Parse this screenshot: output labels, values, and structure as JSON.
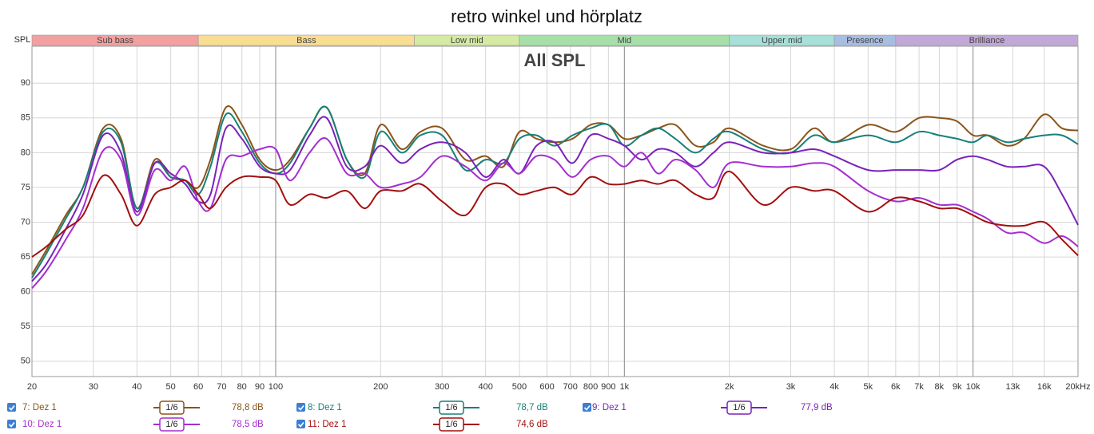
{
  "chart_data": {
    "type": "line",
    "title": "retro winkel und hörplatz",
    "subtitle": "All SPL",
    "y_label": "SPL",
    "xscale": "log",
    "xlim": [
      20,
      20000
    ],
    "ylim": [
      47.8,
      95.3
    ],
    "grid": true,
    "xticks": [
      20,
      30,
      40,
      50,
      60,
      70,
      80,
      90,
      100,
      200,
      300,
      400,
      500,
      600,
      700,
      800,
      900,
      {
        "value": 1000,
        "label": "1k"
      },
      {
        "value": 2000,
        "label": "2k"
      },
      {
        "value": 3000,
        "label": "3k"
      },
      {
        "value": 4000,
        "label": "4k"
      },
      {
        "value": 5000,
        "label": "5k"
      },
      {
        "value": 6000,
        "label": "6k"
      },
      {
        "value": 7000,
        "label": "7k"
      },
      {
        "value": 8000,
        "label": "8k"
      },
      {
        "value": 9000,
        "label": "9k"
      },
      {
        "value": 10000,
        "label": "10k"
      },
      {
        "value": 13000,
        "label": "13k"
      },
      {
        "value": 16000,
        "label": "16k"
      },
      {
        "value": 20000,
        "label": "20kHz"
      }
    ],
    "yticks": [
      50,
      55,
      60,
      65,
      70,
      75,
      80,
      85,
      90
    ],
    "bands": [
      {
        "name": "Sub bass",
        "start": 20,
        "end": 60,
        "color": "#f2a0a0"
      },
      {
        "name": "Bass",
        "start": 60,
        "end": 250,
        "color": "#f9dd92"
      },
      {
        "name": "Low mid",
        "start": 250,
        "end": 500,
        "color": "#d5eaa2"
      },
      {
        "name": "Mid",
        "start": 500,
        "end": 2000,
        "color": "#a6e0a8"
      },
      {
        "name": "Upper mid",
        "start": 2000,
        "end": 4000,
        "color": "#a6e0d8"
      },
      {
        "name": "Presence",
        "start": 4000,
        "end": 6000,
        "color": "#a8bde2"
      },
      {
        "name": "Brilliance",
        "start": 6000,
        "end": 20000,
        "color": "#c2a8d8"
      }
    ],
    "x": [
      20,
      22,
      25,
      28,
      32,
      36,
      40,
      45,
      50,
      55,
      60,
      65,
      72,
      80,
      90,
      100,
      110,
      125,
      140,
      160,
      180,
      200,
      230,
      260,
      300,
      350,
      400,
      450,
      500,
      560,
      630,
      710,
      800,
      900,
      1000,
      1120,
      1250,
      1400,
      1600,
      1800,
      2000,
      2500,
      3000,
      3500,
      4000,
      5000,
      6000,
      7000,
      8000,
      9000,
      10000,
      11000,
      12500,
      14000,
      16000,
      18000,
      20000
    ],
    "series": [
      {
        "name": "7: Dez 1",
        "color": "#8b5418",
        "smoothing": "1/6",
        "level": {
          "value": 78.8,
          "label": "78,8 dB"
        },
        "values": [
          62.5,
          66,
          71,
          75,
          83.5,
          82,
          72,
          79,
          76.5,
          76,
          75,
          79,
          86.5,
          84,
          79,
          77.5,
          79,
          83.5,
          86.5,
          79,
          77,
          84,
          80.5,
          83,
          83.5,
          79,
          79.5,
          78,
          83,
          82,
          81.5,
          82,
          84,
          84,
          82,
          82.5,
          83.5,
          84,
          81,
          81.5,
          83.5,
          81,
          80.5,
          83.5,
          81.5,
          84,
          83,
          85,
          85,
          84.5,
          82.5,
          82.5,
          81,
          82,
          85.5,
          83.5,
          83.2
        ]
      },
      {
        "name": "8: Dez 1",
        "color": "#178078",
        "smoothing": "1/6",
        "level": {
          "value": 78.7,
          "label": "78,7 dB"
        },
        "values": [
          62,
          65.5,
          70.5,
          75,
          83,
          81.5,
          72,
          78.5,
          76.5,
          76,
          74,
          78,
          85.5,
          83,
          78.5,
          77,
          78.5,
          83.5,
          86.5,
          79,
          76.5,
          83,
          80,
          82.5,
          82.5,
          77.5,
          79,
          78.5,
          82,
          82.5,
          81,
          82.5,
          83.5,
          84,
          81,
          82.5,
          83.5,
          82,
          80,
          82,
          83,
          80.5,
          80,
          82.5,
          81.5,
          82.5,
          81.5,
          83,
          82.5,
          82,
          81.5,
          82.5,
          81.5,
          82,
          82.5,
          82.5,
          81.2
        ]
      },
      {
        "name": "9: Dez 1",
        "color": "#7a22b8",
        "smoothing": "1/6",
        "level": {
          "value": 77.9,
          "label": "77,9 dB"
        },
        "values": [
          61.5,
          64,
          69,
          74,
          82.5,
          80,
          71.5,
          78.5,
          77,
          75.5,
          73,
          74,
          83.5,
          82,
          78,
          77,
          77.5,
          82.5,
          85,
          78,
          78,
          81,
          78.5,
          80.5,
          81.5,
          80,
          76.5,
          79,
          77,
          81,
          81.5,
          78.5,
          82.5,
          82,
          81,
          79,
          80.5,
          80,
          78,
          80,
          81.5,
          80,
          80,
          80.5,
          79.5,
          77.5,
          77.5,
          77.5,
          77.5,
          79,
          79.5,
          79,
          78,
          78,
          78,
          74,
          69.6
        ]
      },
      {
        "name": "10: Dez 1",
        "color": "#a42ed0",
        "smoothing": "1/6",
        "level": {
          "value": 78.5,
          "label": "78,5 dB"
        },
        "values": [
          60.5,
          63,
          67.5,
          72,
          80.3,
          79,
          71,
          77.5,
          76,
          78,
          73,
          72,
          79,
          79.5,
          80.5,
          80.5,
          76,
          80,
          82,
          77,
          77,
          75,
          75.5,
          76.5,
          79.5,
          78,
          76,
          78.5,
          77,
          79.5,
          79,
          76.5,
          79,
          79.5,
          78,
          80,
          77,
          79,
          77.5,
          75,
          78.5,
          78,
          78,
          78.5,
          78,
          74.5,
          73,
          73.5,
          72.5,
          72.5,
          71.5,
          70.5,
          68.5,
          68.5,
          67,
          68,
          66.5
        ]
      },
      {
        "name": "11: Dez 1",
        "color": "#a30f0f",
        "smoothing": "1/6",
        "level": {
          "value": 74.6,
          "label": "74,6 dB"
        },
        "values": [
          65,
          66.5,
          69,
          71,
          76.7,
          74,
          69.5,
          74,
          75,
          76,
          74,
          72,
          75,
          76.5,
          76.5,
          76,
          72.5,
          74,
          73.5,
          74.5,
          72,
          74.5,
          74.5,
          75.5,
          73,
          71,
          75,
          75.5,
          74,
          74.5,
          75,
          74,
          76.5,
          75.5,
          75.5,
          76,
          75.5,
          76,
          74,
          73.5,
          77.3,
          72.5,
          75,
          74.5,
          74.5,
          71.5,
          73.5,
          73,
          72,
          72,
          71,
          70,
          69.5,
          69.5,
          70,
          67.5,
          65.2
        ]
      }
    ]
  }
}
